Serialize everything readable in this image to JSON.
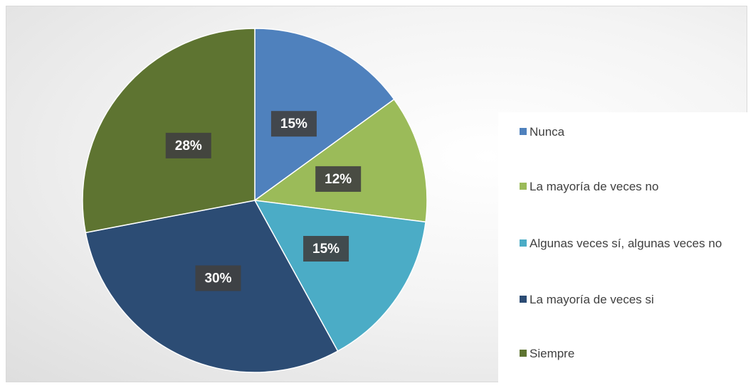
{
  "chart_data": {
    "type": "pie",
    "categories": [
      "Nunca",
      "La mayoría de veces no",
      "Algunas veces sí, algunas veces no",
      "La mayoría de veces si",
      "Siempre"
    ],
    "values": [
      15,
      12,
      15,
      30,
      28
    ],
    "value_labels": [
      "15%",
      "12%",
      "15%",
      "30%",
      "28%"
    ],
    "colors": [
      "#4f81bd",
      "#9bbb59",
      "#4bacc6",
      "#2c4c74",
      "#5e7431"
    ],
    "legend": "right"
  }
}
